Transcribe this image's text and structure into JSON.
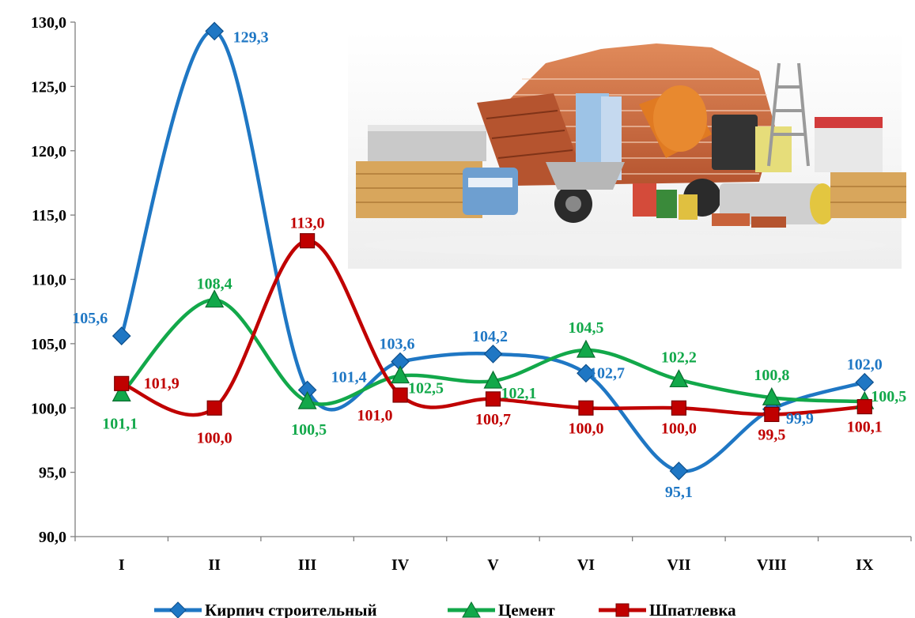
{
  "chart_data": {
    "type": "line",
    "categories": [
      "I",
      "II",
      "III",
      "IV",
      "V",
      "VI",
      "VII",
      "VIII",
      "IX"
    ],
    "ylim": [
      90,
      130
    ],
    "yticks": [
      "90,0",
      "95,0",
      "100,0",
      "105,0",
      "110,0",
      "115,0",
      "120,0",
      "125,0",
      "130,0"
    ],
    "grid": false,
    "legend_position": "bottom",
    "series": [
      {
        "name": "Кирпич строительный",
        "color": "#1f77c4",
        "marker": "diamond",
        "values": [
          105.6,
          129.3,
          101.4,
          103.6,
          104.2,
          102.7,
          95.1,
          99.9,
          102.0
        ],
        "labels": [
          "105,6",
          "129,3",
          "101,4",
          "103,6",
          "104,2",
          "102,7",
          "95,1",
          "99,9",
          "102,0"
        ]
      },
      {
        "name": "Цемент",
        "color": "#12a84a",
        "marker": "triangle",
        "values": [
          101.1,
          108.4,
          100.5,
          102.5,
          102.1,
          104.5,
          102.2,
          100.8,
          100.5
        ],
        "labels": [
          "101,1",
          "108,4",
          "100,5",
          "102,5",
          "102,1",
          "104,5",
          "102,2",
          "100,8",
          "100,5"
        ]
      },
      {
        "name": "Шпатлевка",
        "color": "#c00000",
        "marker": "square",
        "values": [
          101.9,
          100.0,
          113.0,
          101.0,
          100.7,
          100.0,
          100.0,
          99.5,
          100.1
        ],
        "labels": [
          "101,9",
          "100,0",
          "113,0",
          "101,0",
          "100,7",
          "100,0",
          "100,0",
          "99,5",
          "100,1"
        ]
      }
    ]
  },
  "image": {
    "description": "",
    "palette": [
      "#c8623a",
      "#b5542f",
      "#d9a35a",
      "#a8a8a8",
      "#e07a22",
      "#5b8fc0"
    ]
  }
}
